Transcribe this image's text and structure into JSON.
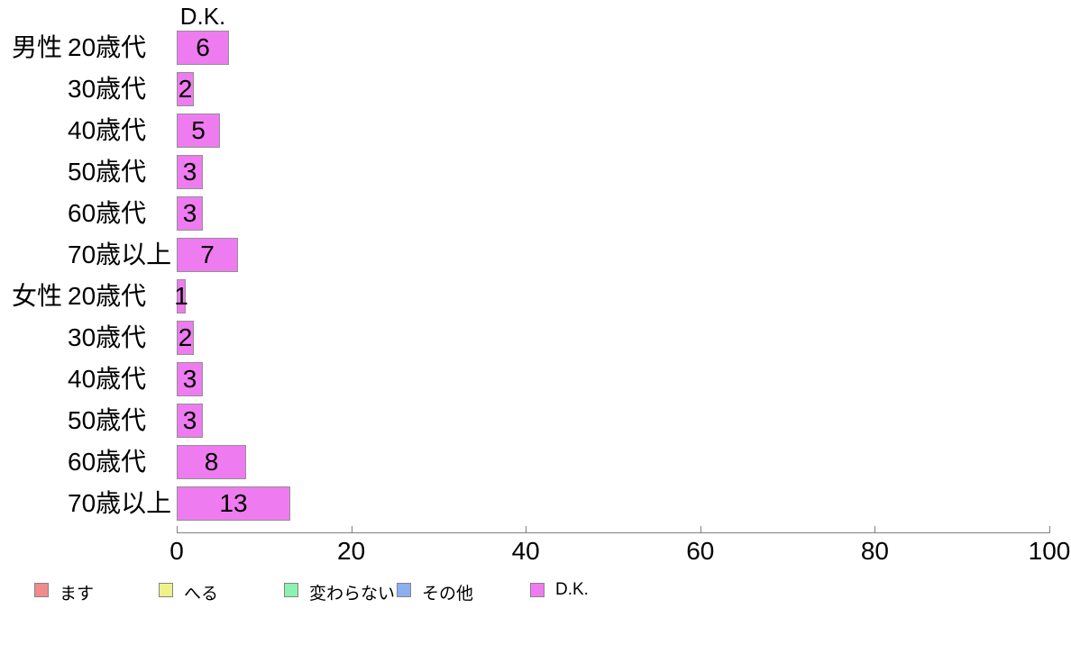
{
  "chart_data": {
    "type": "bar",
    "orientation": "horizontal",
    "title": "D.K.",
    "rows": [
      {
        "group": "男性",
        "age": "20歳代",
        "value": 6
      },
      {
        "group": "",
        "age": "30歳代",
        "value": 2
      },
      {
        "group": "",
        "age": "40歳代",
        "value": 5
      },
      {
        "group": "",
        "age": "50歳代",
        "value": 3
      },
      {
        "group": "",
        "age": "60歳代",
        "value": 3
      },
      {
        "group": "",
        "age": "70歳以上",
        "value": 7
      },
      {
        "group": "女性",
        "age": "20歳代",
        "value": 1
      },
      {
        "group": "",
        "age": "30歳代",
        "value": 2
      },
      {
        "group": "",
        "age": "40歳代",
        "value": 3
      },
      {
        "group": "",
        "age": "50歳代",
        "value": 3
      },
      {
        "group": "",
        "age": "60歳代",
        "value": 8
      },
      {
        "group": "",
        "age": "70歳以上",
        "value": 13
      }
    ],
    "xlim": [
      0,
      100
    ],
    "x_ticks": [
      0,
      20,
      40,
      60,
      80,
      100
    ],
    "grid": false,
    "bar_color": "#EE7CF0",
    "bar_border_color": "#909090",
    "axis_color": "#808080",
    "legend_position": "bottom",
    "legend": [
      {
        "label": "ます",
        "color": "#F28B8B"
      },
      {
        "label": "へる",
        "color": "#EDF28B"
      },
      {
        "label": "変わらない",
        "color": "#8BF2B1"
      },
      {
        "label": "その他",
        "color": "#8BAFF0"
      },
      {
        "label": "D.K.",
        "color": "#EE7CF0"
      }
    ]
  }
}
